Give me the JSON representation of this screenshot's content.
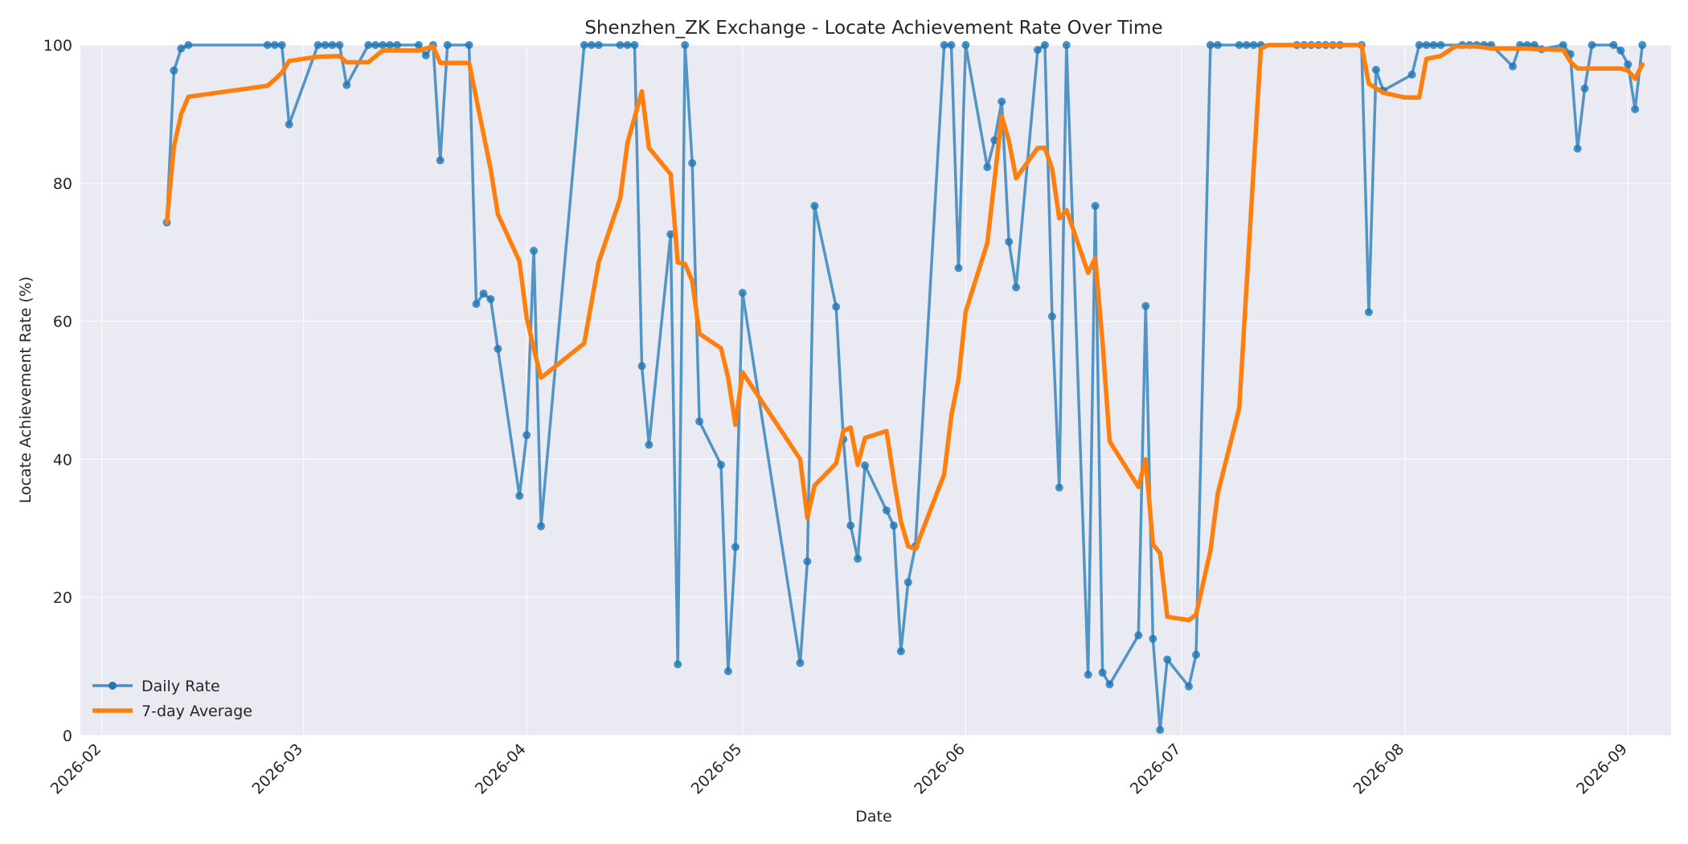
{
  "chart_data": {
    "type": "line",
    "title": "Shenzhen_ZK Exchange - Locate Achievement Rate Over Time",
    "xlabel": "Date",
    "ylabel": "Locate Achievement Rate (%)",
    "xlim": [
      "2026-01-29",
      "2026-09-07"
    ],
    "ylim": [
      0,
      100
    ],
    "x_ticks": [
      "2026-02",
      "2026-03",
      "2026-04",
      "2026-05",
      "2026-06",
      "2026-07",
      "2026-08",
      "2026-09"
    ],
    "y_ticks": [
      0,
      20,
      40,
      60,
      80,
      100
    ],
    "grid": true,
    "legend_position": "bottom-left",
    "colors": {
      "daily": "#1f77b4",
      "average": "#ff7f0e",
      "background": "#eaeaf2"
    },
    "series": [
      {
        "name": "Daily Rate",
        "style": "line-with-markers",
        "points": [
          [
            "2026-02-10",
            74.3
          ],
          [
            "2026-02-11",
            96.3
          ],
          [
            "2026-02-12",
            99.5
          ],
          [
            "2026-02-13",
            100
          ],
          [
            "2026-02-24",
            100
          ],
          [
            "2026-02-25",
            100
          ],
          [
            "2026-02-26",
            100
          ],
          [
            "2026-02-27",
            88.5
          ],
          [
            "2026-03-03",
            100
          ],
          [
            "2026-03-04",
            100
          ],
          [
            "2026-03-05",
            100
          ],
          [
            "2026-03-06",
            100
          ],
          [
            "2026-03-07",
            94.2
          ],
          [
            "2026-03-10",
            100
          ],
          [
            "2026-03-11",
            100
          ],
          [
            "2026-03-12",
            100
          ],
          [
            "2026-03-13",
            100
          ],
          [
            "2026-03-14",
            100
          ],
          [
            "2026-03-17",
            100
          ],
          [
            "2026-03-18",
            98.5
          ],
          [
            "2026-03-19",
            100
          ],
          [
            "2026-03-20",
            83.3
          ],
          [
            "2026-03-21",
            100
          ],
          [
            "2026-03-24",
            100
          ],
          [
            "2026-03-25",
            62.5
          ],
          [
            "2026-03-26",
            64.0
          ],
          [
            "2026-03-27",
            63.2
          ],
          [
            "2026-03-28",
            56.0
          ],
          [
            "2026-03-31",
            34.7
          ],
          [
            "2026-04-01",
            43.5
          ],
          [
            "2026-04-02",
            70.2
          ],
          [
            "2026-04-03",
            30.3
          ],
          [
            "2026-04-09",
            100
          ],
          [
            "2026-04-10",
            100
          ],
          [
            "2026-04-11",
            100
          ],
          [
            "2026-04-14",
            100
          ],
          [
            "2026-04-15",
            100
          ],
          [
            "2026-04-16",
            100
          ],
          [
            "2026-04-17",
            53.5
          ],
          [
            "2026-04-18",
            42.1
          ],
          [
            "2026-04-21",
            72.6
          ],
          [
            "2026-04-22",
            10.3
          ],
          [
            "2026-04-23",
            100
          ],
          [
            "2026-04-24",
            82.9
          ],
          [
            "2026-04-25",
            45.5
          ],
          [
            "2026-04-28",
            39.2
          ],
          [
            "2026-04-29",
            9.3
          ],
          [
            "2026-04-30",
            27.3
          ],
          [
            "2026-05-01",
            64.1
          ],
          [
            "2026-05-09",
            10.5
          ],
          [
            "2026-05-10",
            25.2
          ],
          [
            "2026-05-11",
            76.7
          ],
          [
            "2026-05-14",
            62.1
          ],
          [
            "2026-05-15",
            42.9
          ],
          [
            "2026-05-16",
            30.4
          ],
          [
            "2026-05-17",
            25.6
          ],
          [
            "2026-05-18",
            39.1
          ],
          [
            "2026-05-21",
            32.6
          ],
          [
            "2026-05-22",
            30.4
          ],
          [
            "2026-05-23",
            12.2
          ],
          [
            "2026-05-24",
            22.2
          ],
          [
            "2026-05-25",
            27.4
          ],
          [
            "2026-05-29",
            100
          ],
          [
            "2026-05-30",
            100
          ],
          [
            "2026-05-31",
            67.7
          ],
          [
            "2026-06-01",
            100
          ],
          [
            "2026-06-04",
            82.3
          ],
          [
            "2026-06-05",
            86.2
          ],
          [
            "2026-06-06",
            91.8
          ],
          [
            "2026-06-07",
            71.5
          ],
          [
            "2026-06-08",
            64.9
          ],
          [
            "2026-06-11",
            99.3
          ],
          [
            "2026-06-12",
            100
          ],
          [
            "2026-06-13",
            60.7
          ],
          [
            "2026-06-14",
            35.9
          ],
          [
            "2026-06-15",
            100
          ],
          [
            "2026-06-18",
            8.8
          ],
          [
            "2026-06-19",
            76.7
          ],
          [
            "2026-06-20",
            9.1
          ],
          [
            "2026-06-21",
            7.4
          ],
          [
            "2026-06-25",
            14.5
          ],
          [
            "2026-06-26",
            62.2
          ],
          [
            "2026-06-27",
            14.0
          ],
          [
            "2026-06-28",
            0.8
          ],
          [
            "2026-06-29",
            11.0
          ],
          [
            "2026-07-02",
            7.1
          ],
          [
            "2026-07-03",
            11.7
          ],
          [
            "2026-07-05",
            100
          ],
          [
            "2026-07-06",
            100
          ],
          [
            "2026-07-09",
            100
          ],
          [
            "2026-07-10",
            100
          ],
          [
            "2026-07-11",
            100
          ],
          [
            "2026-07-12",
            100
          ],
          [
            "2026-07-17",
            100
          ],
          [
            "2026-07-18",
            100
          ],
          [
            "2026-07-19",
            100
          ],
          [
            "2026-07-20",
            100
          ],
          [
            "2026-07-21",
            100
          ],
          [
            "2026-07-22",
            100
          ],
          [
            "2026-07-23",
            100
          ],
          [
            "2026-07-26",
            100
          ],
          [
            "2026-07-27",
            61.3
          ],
          [
            "2026-07-28",
            96.4
          ],
          [
            "2026-07-29",
            93.4
          ],
          [
            "2026-08-02",
            95.7
          ],
          [
            "2026-08-03",
            100
          ],
          [
            "2026-08-04",
            100
          ],
          [
            "2026-08-05",
            100
          ],
          [
            "2026-08-06",
            100
          ],
          [
            "2026-08-09",
            100
          ],
          [
            "2026-08-10",
            100
          ],
          [
            "2026-08-11",
            100
          ],
          [
            "2026-08-12",
            100
          ],
          [
            "2026-08-13",
            100
          ],
          [
            "2026-08-16",
            96.9
          ],
          [
            "2026-08-17",
            100
          ],
          [
            "2026-08-18",
            100
          ],
          [
            "2026-08-19",
            100
          ],
          [
            "2026-08-20",
            99.4
          ],
          [
            "2026-08-23",
            100
          ],
          [
            "2026-08-24",
            98.7
          ],
          [
            "2026-08-25",
            85.0
          ],
          [
            "2026-08-26",
            93.7
          ],
          [
            "2026-08-27",
            100
          ],
          [
            "2026-08-30",
            100
          ],
          [
            "2026-08-31",
            99.2
          ],
          [
            "2026-09-01",
            97.2
          ],
          [
            "2026-09-02",
            90.7
          ],
          [
            "2026-09-03",
            100
          ]
        ]
      },
      {
        "name": "7-day Average",
        "style": "line",
        "points": [
          [
            "2026-02-10",
            74.3
          ],
          [
            "2026-02-11",
            85.3
          ],
          [
            "2026-02-12",
            90.0
          ],
          [
            "2026-02-13",
            92.5
          ],
          [
            "2026-02-24",
            94.1
          ],
          [
            "2026-02-25",
            95.0
          ],
          [
            "2026-02-26",
            96.0
          ],
          [
            "2026-02-27",
            97.7
          ],
          [
            "2026-03-03",
            98.3
          ],
          [
            "2026-03-06",
            98.4
          ],
          [
            "2026-03-07",
            97.5
          ],
          [
            "2026-03-10",
            97.5
          ],
          [
            "2026-03-12",
            99.2
          ],
          [
            "2026-03-17",
            99.2
          ],
          [
            "2026-03-18",
            99.5
          ],
          [
            "2026-03-19",
            99.8
          ],
          [
            "2026-03-20",
            97.4
          ],
          [
            "2026-03-24",
            97.4
          ],
          [
            "2026-03-27",
            82.0
          ],
          [
            "2026-03-28",
            75.5
          ],
          [
            "2026-03-31",
            68.7
          ],
          [
            "2026-04-01",
            60.5
          ],
          [
            "2026-04-02",
            56.0
          ],
          [
            "2026-04-03",
            51.8
          ],
          [
            "2026-04-09",
            56.8
          ],
          [
            "2026-04-11",
            68.5
          ],
          [
            "2026-04-14",
            77.8
          ],
          [
            "2026-04-15",
            85.8
          ],
          [
            "2026-04-17",
            93.3
          ],
          [
            "2026-04-18",
            85.1
          ],
          [
            "2026-04-21",
            81.3
          ],
          [
            "2026-04-22",
            68.5
          ],
          [
            "2026-04-23",
            68.3
          ],
          [
            "2026-04-24",
            65.8
          ],
          [
            "2026-04-25",
            58.2
          ],
          [
            "2026-04-28",
            56.1
          ],
          [
            "2026-04-29",
            51.8
          ],
          [
            "2026-04-30",
            45.0
          ],
          [
            "2026-05-01",
            52.6
          ],
          [
            "2026-05-09",
            40.0
          ],
          [
            "2026-05-10",
            31.5
          ],
          [
            "2026-05-11",
            36.2
          ],
          [
            "2026-05-14",
            39.4
          ],
          [
            "2026-05-15",
            44.1
          ],
          [
            "2026-05-16",
            44.6
          ],
          [
            "2026-05-17",
            39.2
          ],
          [
            "2026-05-18",
            43.1
          ],
          [
            "2026-05-21",
            44.1
          ],
          [
            "2026-05-22",
            37.2
          ],
          [
            "2026-05-23",
            31.0
          ],
          [
            "2026-05-24",
            27.4
          ],
          [
            "2026-05-25",
            27.0
          ],
          [
            "2026-05-29",
            37.8
          ],
          [
            "2026-05-30",
            46.3
          ],
          [
            "2026-05-31",
            51.6
          ],
          [
            "2026-06-01",
            61.4
          ],
          [
            "2026-06-04",
            71.3
          ],
          [
            "2026-06-06",
            89.7
          ],
          [
            "2026-06-07",
            86.1
          ],
          [
            "2026-06-08",
            80.7
          ],
          [
            "2026-06-11",
            85.1
          ],
          [
            "2026-06-12",
            85.1
          ],
          [
            "2026-06-13",
            82.1
          ],
          [
            "2026-06-14",
            74.9
          ],
          [
            "2026-06-15",
            76.1
          ],
          [
            "2026-06-18",
            67.0
          ],
          [
            "2026-06-19",
            69.1
          ],
          [
            "2026-06-20",
            57.0
          ],
          [
            "2026-06-21",
            42.6
          ],
          [
            "2026-06-25",
            36.0
          ],
          [
            "2026-06-26",
            40.0
          ],
          [
            "2026-06-27",
            27.7
          ],
          [
            "2026-06-28",
            26.4
          ],
          [
            "2026-06-29",
            17.2
          ],
          [
            "2026-07-02",
            16.7
          ],
          [
            "2026-07-03",
            17.5
          ],
          [
            "2026-07-05",
            26.8
          ],
          [
            "2026-07-06",
            35.0
          ],
          [
            "2026-07-09",
            47.4
          ],
          [
            "2026-07-12",
            99.5
          ],
          [
            "2026-07-13",
            100
          ],
          [
            "2026-07-26",
            100
          ],
          [
            "2026-07-27",
            94.4
          ],
          [
            "2026-07-29",
            93.1
          ],
          [
            "2026-08-01",
            92.4
          ],
          [
            "2026-08-03",
            92.4
          ],
          [
            "2026-08-04",
            98.0
          ],
          [
            "2026-08-06",
            98.4
          ],
          [
            "2026-08-08",
            99.8
          ],
          [
            "2026-08-11",
            99.8
          ],
          [
            "2026-08-13",
            99.5
          ],
          [
            "2026-08-18",
            99.5
          ],
          [
            "2026-08-19",
            99.4
          ],
          [
            "2026-08-23",
            99.3
          ],
          [
            "2026-08-24",
            97.6
          ],
          [
            "2026-08-25",
            96.6
          ],
          [
            "2026-08-31",
            96.6
          ],
          [
            "2026-09-01",
            96.3
          ],
          [
            "2026-09-02",
            95.1
          ],
          [
            "2026-09-03",
            97.2
          ]
        ]
      }
    ]
  }
}
